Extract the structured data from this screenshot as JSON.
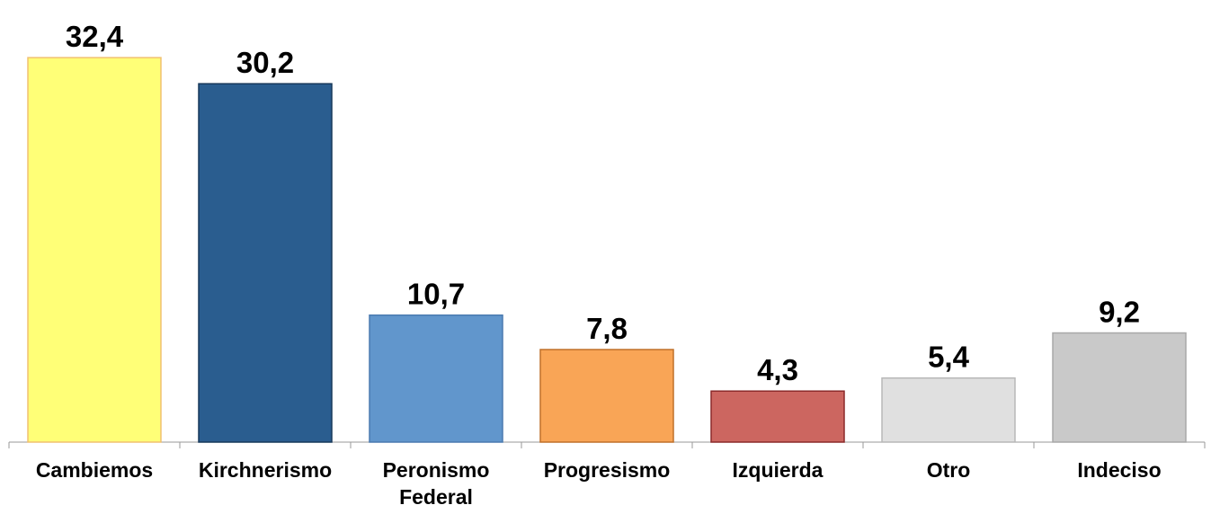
{
  "chart_data": {
    "type": "bar",
    "categories": [
      "Cambiemos",
      "Kirchnerismo",
      "Peronismo Federal",
      "Progresismo",
      "Izquierda",
      "Otro",
      "Indeciso"
    ],
    "values": [
      32.4,
      30.2,
      10.7,
      7.8,
      4.3,
      5.4,
      9.2
    ],
    "value_labels": [
      "32,4",
      "30,2",
      "10,7",
      "7,8",
      "4,3",
      "5,4",
      "9,2"
    ],
    "colors": [
      "#ffff77",
      "#2a5d8f",
      "#6196cc",
      "#f9a556",
      "#cc6660",
      "#e0e0e0",
      "#c9c9c9"
    ],
    "edgecolors": [
      "#f0c070",
      "#17385a",
      "#4a7ab0",
      "#c0702a",
      "#8b2a2a",
      "#b8b8b8",
      "#a8a8a8"
    ],
    "ylim": [
      0,
      34
    ]
  }
}
